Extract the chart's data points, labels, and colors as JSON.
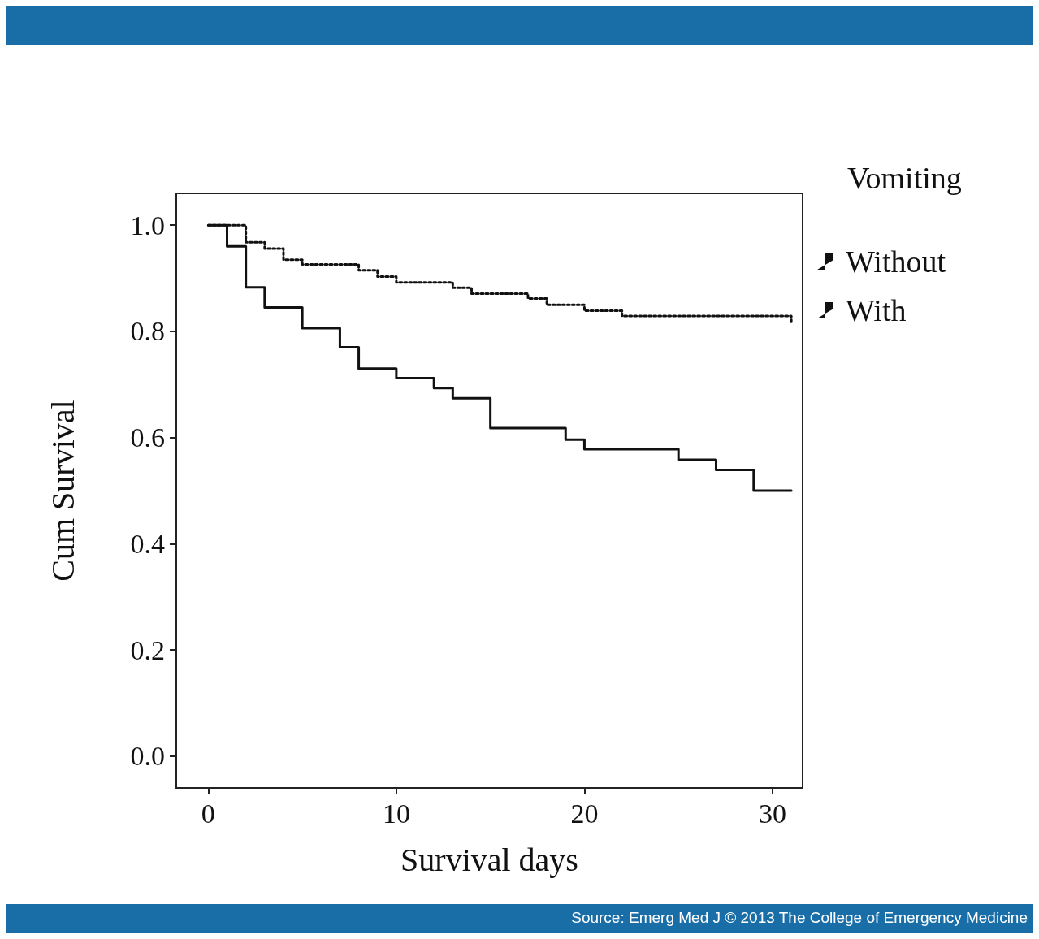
{
  "chart_data": {
    "type": "step",
    "xlabel": "Survival days",
    "ylabel": "Cum Survival",
    "legend_title": "Vomiting",
    "annotations": [
      "Source: Emerg Med J © 2013 The College of Emergency Medicine"
    ],
    "xlim": [
      -1.7,
      31.6
    ],
    "xticks": [
      0,
      10,
      20,
      30
    ],
    "ylim": [
      -0.06,
      1.06
    ],
    "yticks": [
      {
        "value": 0,
        "label": "0.0"
      },
      0.2,
      0.4,
      0.6,
      0.8,
      {
        "value": 1,
        "label": "1.0"
      }
    ],
    "grid": false,
    "legend": "top right",
    "marker": "none",
    "series": [
      {
        "name": "Without",
        "color": "#111111",
        "line_style": "dotted",
        "x": [
          0,
          2,
          3,
          4,
          5,
          8,
          9,
          10,
          13,
          14,
          17,
          18,
          20,
          22,
          31,
          31
        ],
        "values": [
          1.0,
          0.968,
          0.956,
          0.935,
          0.926,
          0.915,
          0.903,
          0.892,
          0.882,
          0.871,
          0.862,
          0.85,
          0.839,
          0.829,
          0.829,
          0.818
        ]
      },
      {
        "name": "With",
        "color": "#111111",
        "line_style": "solid",
        "x": [
          0,
          1,
          2,
          3,
          5,
          7,
          8,
          10,
          12,
          13,
          15,
          19,
          20,
          25,
          27,
          29,
          31
        ],
        "values": [
          1.0,
          0.96,
          0.883,
          0.845,
          0.806,
          0.77,
          0.73,
          0.712,
          0.693,
          0.674,
          0.618,
          0.596,
          0.578,
          0.558,
          0.539,
          0.5,
          0.5
        ]
      }
    ]
  }
}
